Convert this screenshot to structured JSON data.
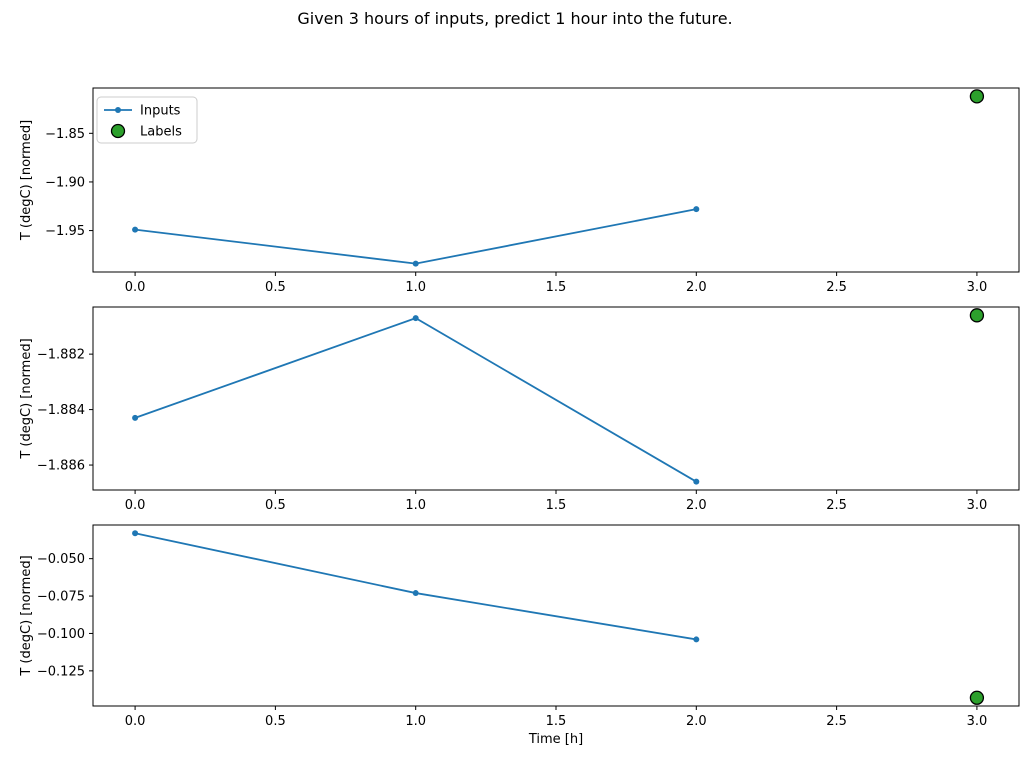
{
  "title": "Given 3 hours of inputs, predict 1 hour into the future.",
  "colors": {
    "inputs_line": "#1f77b4",
    "labels_marker_fill": "#2ca02c",
    "labels_marker_edge": "#000000",
    "axis": "#000000",
    "legend_border": "#cccccc",
    "background": "#ffffff"
  },
  "legend": {
    "position": "upper left of first subplot",
    "entries": [
      {
        "label": "Inputs",
        "marker": "blue-line-dot-icon"
      },
      {
        "label": "Labels",
        "marker": "green-circle-icon"
      }
    ]
  },
  "chart_data": [
    {
      "type": "line",
      "title": "",
      "xlabel": "",
      "ylabel": "T (degC) [normed]",
      "grid": false,
      "xlim": [
        -0.15,
        3.15
      ],
      "ylim": [
        -1.9926,
        -1.8034
      ],
      "xtick_values": [
        0.0,
        0.5,
        1.0,
        1.5,
        2.0,
        2.5,
        3.0
      ],
      "xtick_labels": [
        "0.0",
        "0.5",
        "1.0",
        "1.5",
        "2.0",
        "2.5",
        "3.0"
      ],
      "ytick_values": [
        -1.85,
        -1.9,
        -1.95
      ],
      "ytick_labels": [
        "−1.85",
        "−1.90",
        "−1.95"
      ],
      "series": [
        {
          "name": "Inputs",
          "style": "line+marker",
          "x": [
            0,
            1,
            2
          ],
          "y": [
            -1.949,
            -1.984,
            -1.928
          ]
        },
        {
          "name": "Labels",
          "style": "scatter",
          "x": [
            3
          ],
          "y": [
            -1.812
          ]
        }
      ]
    },
    {
      "type": "line",
      "title": "",
      "xlabel": "",
      "ylabel": "T (degC) [normed]",
      "grid": false,
      "xlim": [
        -0.15,
        3.15
      ],
      "ylim": [
        -1.8869,
        -1.8803
      ],
      "xtick_values": [
        0.0,
        0.5,
        1.0,
        1.5,
        2.0,
        2.5,
        3.0
      ],
      "xtick_labels": [
        "0.0",
        "0.5",
        "1.0",
        "1.5",
        "2.0",
        "2.5",
        "3.0"
      ],
      "ytick_values": [
        -1.882,
        -1.884,
        -1.886
      ],
      "ytick_labels": [
        "−1.882",
        "−1.884",
        "−1.886"
      ],
      "series": [
        {
          "name": "Inputs",
          "style": "line+marker",
          "x": [
            0,
            1,
            2
          ],
          "y": [
            -1.8843,
            -1.8807,
            -1.8866
          ]
        },
        {
          "name": "Labels",
          "style": "scatter",
          "x": [
            3
          ],
          "y": [
            -1.8806
          ]
        }
      ]
    },
    {
      "type": "line",
      "title": "",
      "xlabel": "Time [h]",
      "ylabel": "T (degC) [normed]",
      "grid": false,
      "xlim": [
        -0.15,
        3.15
      ],
      "ylim": [
        -0.1485,
        -0.0275
      ],
      "xtick_values": [
        0.0,
        0.5,
        1.0,
        1.5,
        2.0,
        2.5,
        3.0
      ],
      "xtick_labels": [
        "0.0",
        "0.5",
        "1.0",
        "1.5",
        "2.0",
        "2.5",
        "3.0"
      ],
      "ytick_values": [
        -0.05,
        -0.075,
        -0.1,
        -0.125
      ],
      "ytick_labels": [
        "−0.050",
        "−0.075",
        "−0.100",
        "−0.125"
      ],
      "series": [
        {
          "name": "Inputs",
          "style": "line+marker",
          "x": [
            0,
            1,
            2
          ],
          "y": [
            -0.033,
            -0.073,
            -0.104
          ]
        },
        {
          "name": "Labels",
          "style": "scatter",
          "x": [
            3
          ],
          "y": [
            -0.143
          ]
        }
      ]
    }
  ]
}
